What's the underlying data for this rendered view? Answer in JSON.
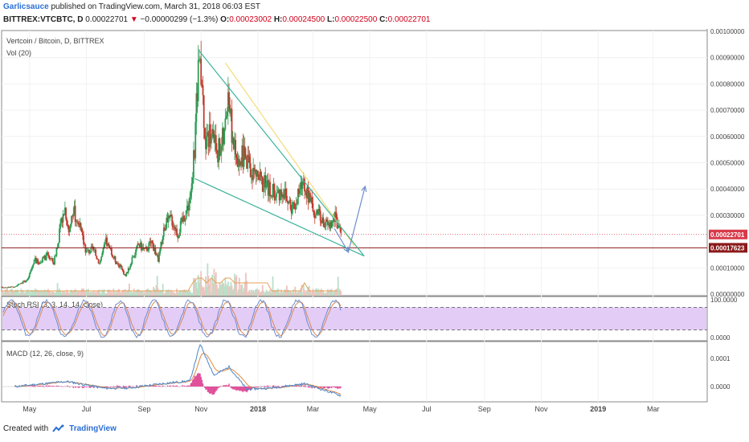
{
  "header": {
    "author": "Garlicsauce",
    "published_text": "published on TradingView.com, March 31, 2018 06:03 EST",
    "symbol": "BITTREX:VTCBTC, D",
    "last": "0.00022701",
    "arrow": "▼",
    "change": "−0.00000299 (−1.3%)",
    "o_label": "O:",
    "o": "0.00023002",
    "h_label": "H:",
    "h": "0.00024500",
    "l_label": "L:",
    "l": "0.00022500",
    "c_label": "C:",
    "c": "0.00022701"
  },
  "footer": {
    "created_with": "Created with",
    "brand": "TradingView"
  },
  "colors": {
    "up": "#2d9e57",
    "down": "#c0392b",
    "wedge": "#3bb39a",
    "trend_yellow": "#f3dc7a",
    "projection": "#6d8ec9",
    "stoch_k": "#6c8ed0",
    "stoch_d": "#d98a53",
    "stoch_band": "#e3ccf6",
    "macd": "#4a86c9",
    "signal": "#e08a3f",
    "hist": "#e0509a",
    "price_label_current": "#d93a4a",
    "price_label_ref": "#8b1a1a"
  },
  "chart_data": [
    {
      "type": "candlestick",
      "title": "Vertcoin / Bitcoin, D, BITTREX",
      "subtitle": "Vol (20)",
      "x_ticks": [
        "May",
        "Jul",
        "Sep",
        "Nov",
        "2018",
        "Mar",
        "May",
        "Jul",
        "Sep",
        "Nov",
        "2019",
        "Mar"
      ],
      "y_ticks": [
        "0.00100000",
        "0.00090000",
        "0.00080000",
        "0.00070000",
        "0.00060000",
        "0.00050000",
        "0.00040000",
        "0.00030000",
        "0.00010000",
        "0.00000000"
      ],
      "ylim": [
        0.0,
        0.001
      ],
      "current_price_label": "0.00022701",
      "reference_line_label": "0.00017623",
      "reference_line": 0.00017623,
      "close_path": [
        [
          "2017-04-01",
          2.6e-05
        ],
        [
          "2017-04-15",
          2.8e-05
        ],
        [
          "2017-04-29",
          5.5e-05
        ],
        [
          "2017-05-06",
          0.000128
        ],
        [
          "2017-05-13",
          0.00012
        ],
        [
          "2017-05-20",
          0.00015
        ],
        [
          "2017-05-27",
          0.00012
        ],
        [
          "2017-06-03",
          0.00025
        ],
        [
          "2017-06-08",
          0.00033
        ],
        [
          "2017-06-12",
          0.00024
        ],
        [
          "2017-06-17",
          0.00032
        ],
        [
          "2017-06-24",
          0.00025
        ],
        [
          "2017-07-01",
          0.00016
        ],
        [
          "2017-07-08",
          0.00017
        ],
        [
          "2017-07-15",
          0.00012
        ],
        [
          "2017-07-22",
          0.0002
        ],
        [
          "2017-07-29",
          0.000145
        ],
        [
          "2017-08-05",
          0.00011
        ],
        [
          "2017-08-12",
          7e-05
        ],
        [
          "2017-08-19",
          0.00013
        ],
        [
          "2017-08-26",
          0.00019
        ],
        [
          "2017-09-02",
          0.000165
        ],
        [
          "2017-09-09",
          0.0002
        ],
        [
          "2017-09-16",
          0.00013
        ],
        [
          "2017-09-23",
          0.00026
        ],
        [
          "2017-09-30",
          0.00029
        ],
        [
          "2017-10-07",
          0.00023
        ],
        [
          "2017-10-14",
          0.0003
        ],
        [
          "2017-10-21",
          0.00037
        ],
        [
          "2017-10-25",
          0.00055
        ],
        [
          "2017-10-29",
          0.00088
        ],
        [
          "2017-11-02",
          0.0008
        ],
        [
          "2017-11-06",
          0.00058
        ],
        [
          "2017-11-12",
          0.00062
        ],
        [
          "2017-11-19",
          0.00055
        ],
        [
          "2017-11-26",
          0.0006
        ],
        [
          "2017-11-30",
          0.0008
        ],
        [
          "2017-12-04",
          0.00062
        ],
        [
          "2017-12-10",
          0.00048
        ],
        [
          "2017-12-17",
          0.00054
        ],
        [
          "2017-12-24",
          0.00047
        ],
        [
          "2017-12-31",
          0.00045
        ],
        [
          "2018-01-07",
          0.00042
        ],
        [
          "2018-01-14",
          0.0004
        ],
        [
          "2018-01-21",
          0.00038
        ],
        [
          "2018-01-28",
          0.0004
        ],
        [
          "2018-02-04",
          0.00033
        ],
        [
          "2018-02-11",
          0.00035
        ],
        [
          "2018-02-18",
          0.00043
        ],
        [
          "2018-02-25",
          0.00036
        ],
        [
          "2018-03-04",
          0.00031
        ],
        [
          "2018-03-11",
          0.00028
        ],
        [
          "2018-03-18",
          0.00026
        ],
        [
          "2018-03-25",
          0.00029
        ],
        [
          "2018-03-31",
          0.000227
        ]
      ],
      "annotations": {
        "wedge_upper": [
          [
            "2017-10-29",
            0.00093
          ],
          [
            "2018-04-25",
            0.000145
          ]
        ],
        "wedge_lower": [
          [
            "2017-10-25",
            0.00044
          ],
          [
            "2018-04-25",
            0.000145
          ]
        ],
        "trend_yellow": [
          [
            "2017-11-27",
            0.00088
          ],
          [
            "2018-04-14",
            0.000185
          ]
        ],
        "projection": [
          [
            "2018-03-24",
            0.00025
          ],
          [
            "2018-04-08",
            0.00016
          ],
          [
            "2018-04-26",
            0.00041
          ]
        ]
      }
    },
    {
      "type": "line",
      "title": "Stoch RSI (3, 3, 14, 14, close)",
      "y_ticks": [
        "100.0000",
        "0.0000"
      ],
      "ylim": [
        0,
        100
      ],
      "band": [
        20,
        80
      ]
    },
    {
      "type": "line",
      "title": "MACD (12, 26, close, 9)",
      "y_ticks": [
        "0.0001",
        "0.0000"
      ],
      "macd_path": [
        [
          "2017-04-15",
          0.0
        ],
        [
          "2017-06-10",
          1.8e-05
        ],
        [
          "2017-07-20",
          -6e-06
        ],
        [
          "2017-08-15",
          -5e-06
        ],
        [
          "2017-09-25",
          1.2e-05
        ],
        [
          "2017-10-20",
          2e-05
        ],
        [
          "2017-10-31",
          0.00015
        ],
        [
          "2017-11-15",
          4e-05
        ],
        [
          "2017-12-01",
          7e-05
        ],
        [
          "2017-12-20",
          -1e-05
        ],
        [
          "2018-01-15",
          -5e-06
        ],
        [
          "2018-02-20",
          1e-05
        ],
        [
          "2018-03-31",
          -3.2e-05
        ]
      ]
    }
  ]
}
